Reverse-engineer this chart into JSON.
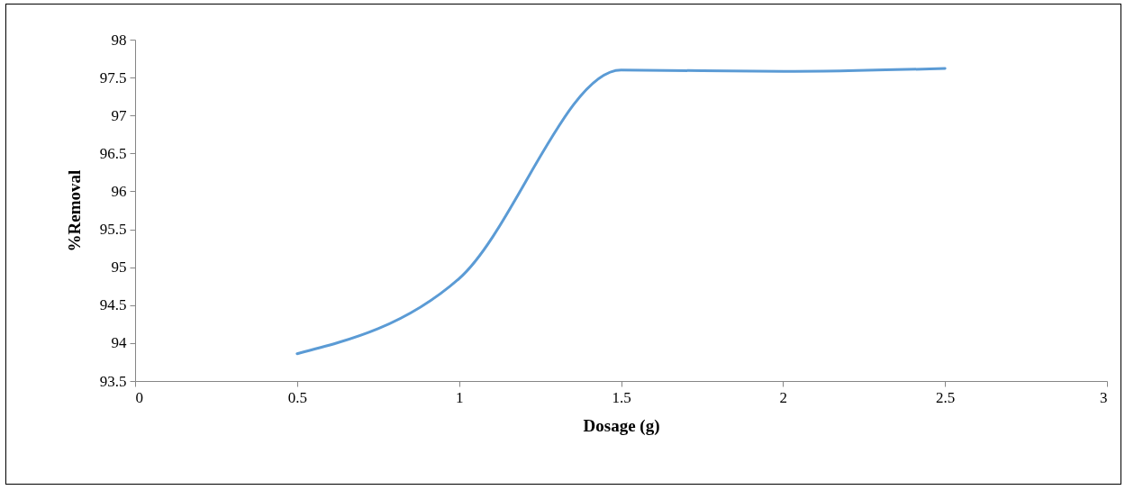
{
  "chart_data": {
    "type": "line",
    "xlabel": "Dosage (g)",
    "ylabel": "%Removal",
    "x": [
      0.5,
      1,
      1.5,
      2,
      2.5
    ],
    "series": [
      {
        "color": "#5b9bd5",
        "values": [
          93.86,
          94.85,
          97.6,
          97.58,
          97.62
        ]
      }
    ],
    "xlim": [
      0,
      3
    ],
    "xticks": [
      0,
      0.5,
      1,
      1.5,
      2,
      2.5,
      3
    ],
    "ylim": [
      93.5,
      98
    ],
    "yticks": [
      93.5,
      94,
      94.5,
      95,
      95.5,
      96,
      96.5,
      97,
      97.5,
      98
    ],
    "grid": false,
    "marker": "none",
    "line_style": "solid"
  }
}
